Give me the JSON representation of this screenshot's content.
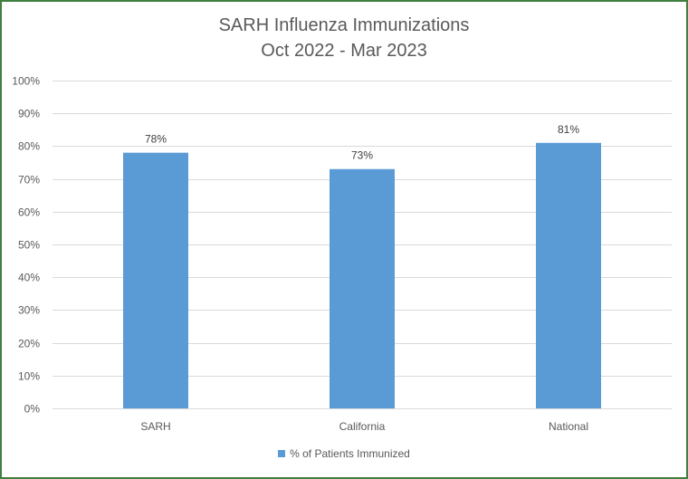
{
  "chart_data": {
    "type": "bar",
    "title_line1": "SARH Influenza Immunizations",
    "title_line2": "Oct 2022 - Mar 2023",
    "categories": [
      "SARH",
      "California",
      "National"
    ],
    "series": [
      {
        "name": "% of Patients Immunized",
        "values": [
          78,
          73,
          81
        ],
        "labels": [
          "78%",
          "73%",
          "81%"
        ],
        "color": "#5b9bd5"
      }
    ],
    "ylim": [
      0,
      100
    ],
    "yticks": [
      0,
      10,
      20,
      30,
      40,
      50,
      60,
      70,
      80,
      90,
      100
    ],
    "ytick_labels": [
      "0%",
      "10%",
      "20%",
      "30%",
      "40%",
      "50%",
      "60%",
      "70%",
      "80%",
      "90%",
      "100%"
    ],
    "grid": true,
    "legend_position": "bottom",
    "frame_color": "#3f7f3f",
    "grid_color": "#d9d9d9"
  }
}
